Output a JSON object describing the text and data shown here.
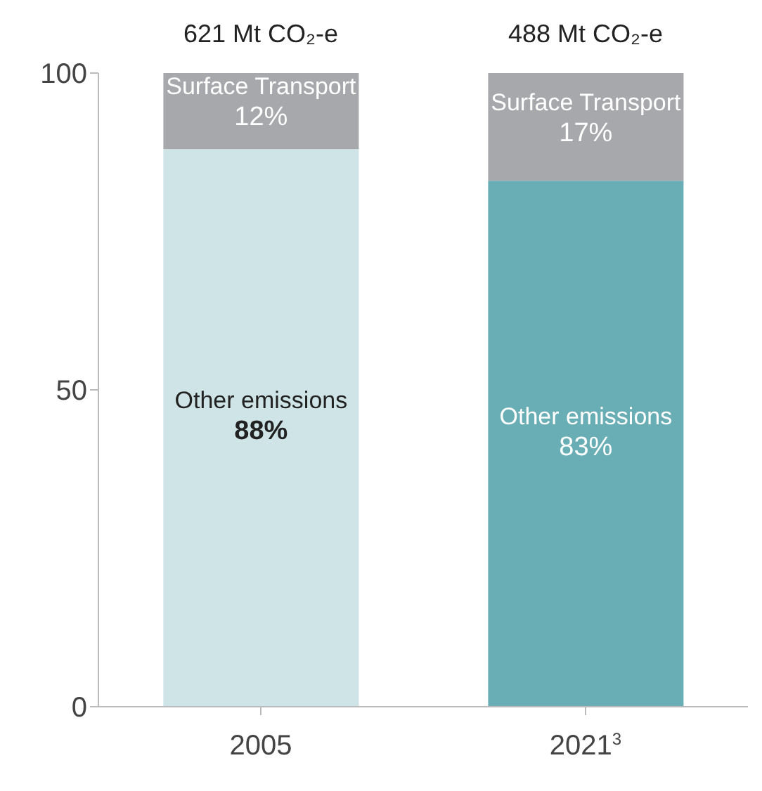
{
  "chart_data": {
    "type": "bar",
    "stacked": true,
    "categories": [
      "2005",
      "2021$^{3}$"
    ],
    "series": [
      {
        "name": "Other emissions",
        "colors": [
          "#cfe4e7",
          "#6aaeb5"
        ],
        "values": [
          88,
          83
        ],
        "value_labels": [
          "88%",
          "83%"
        ]
      },
      {
        "name": "Surface Transport",
        "color": "#a7a8ab",
        "values": [
          12,
          17
        ],
        "value_labels": [
          "12%",
          "17%"
        ]
      }
    ],
    "annotations": [
      {
        "text": "621 Mt CO₂-e",
        "x": "2005",
        "y": 100
      },
      {
        "text": "488 Mt CO₂-e",
        "x": "2021$^{3}$",
        "y": 100
      }
    ],
    "ylim": [
      0,
      100
    ],
    "yticks": [
      0,
      50,
      100
    ],
    "grid": false,
    "legend": false
  }
}
